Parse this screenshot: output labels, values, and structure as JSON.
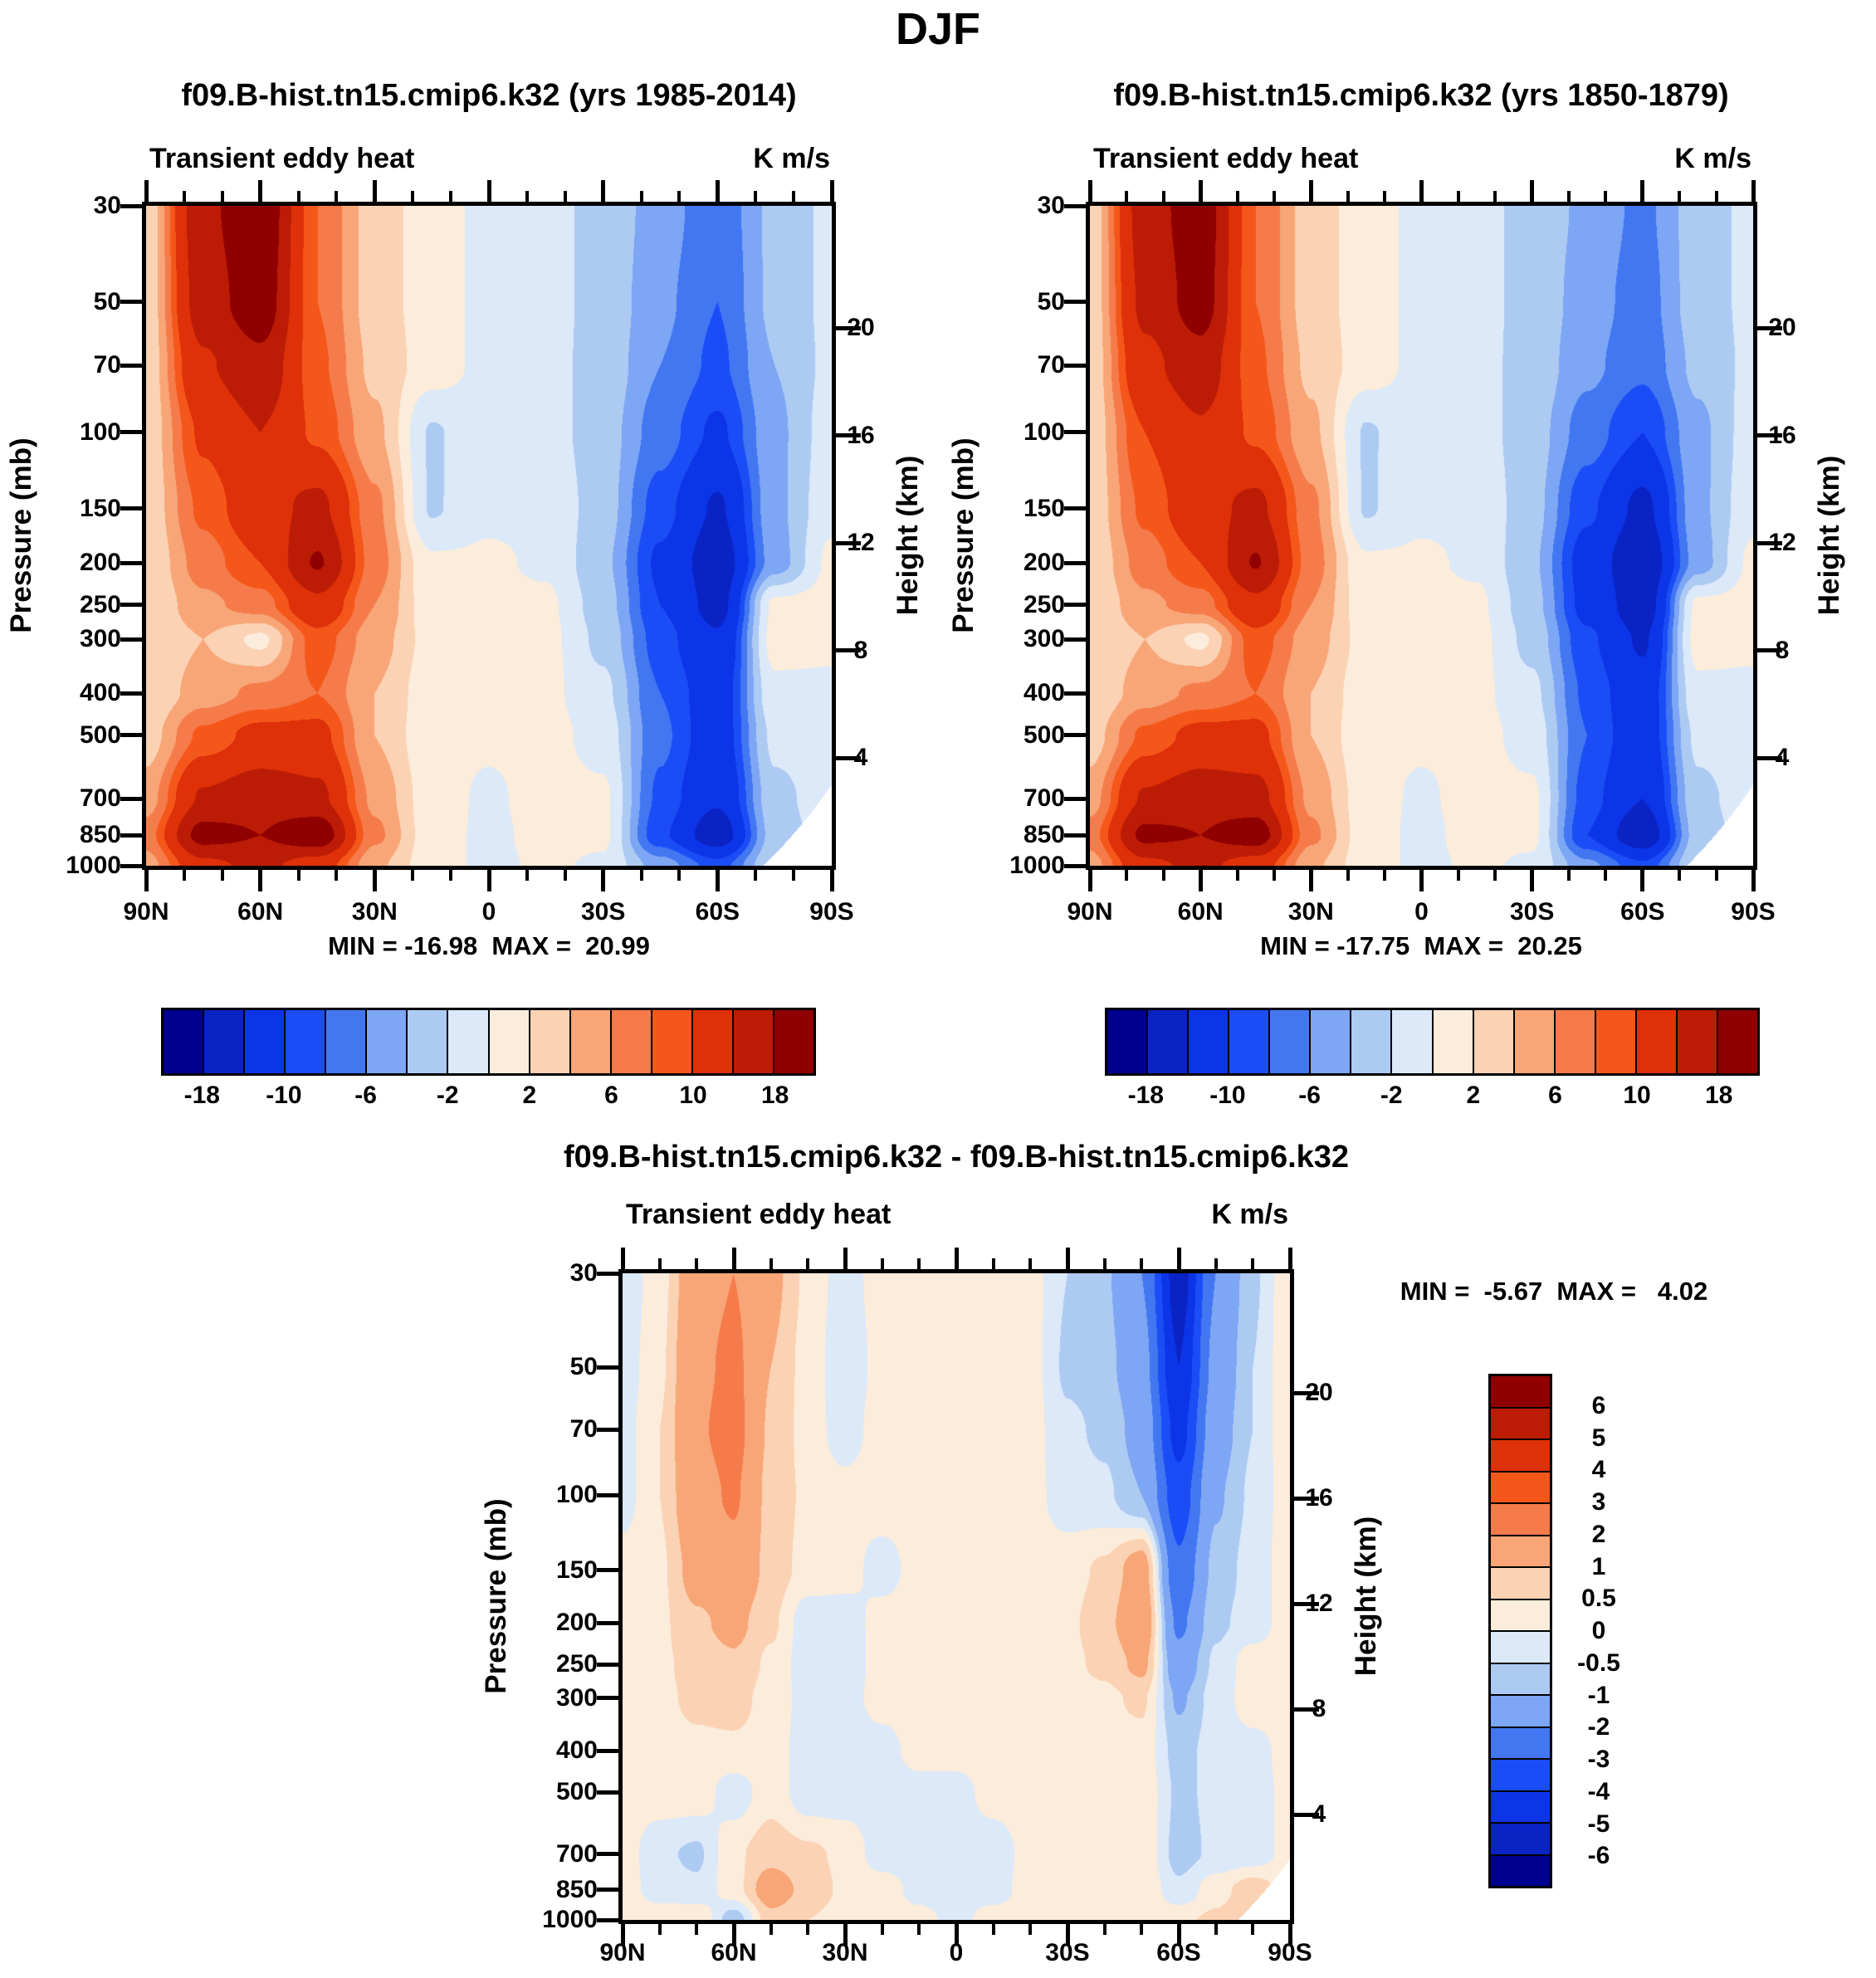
{
  "page": {
    "title": "DJF"
  },
  "palette_blue_to_red": [
    "#00008F",
    "#0A23C4",
    "#0D35E8",
    "#1B4DF7",
    "#4377F2",
    "#7DA6F5",
    "#ADCAF3",
    "#DBE9F9",
    "#FCECDB",
    "#FBD2B4",
    "#F8A677",
    "#F67B4B",
    "#F5571B",
    "#DE3009",
    "#BC1C05",
    "#900000"
  ],
  "chart_data": [
    {
      "id": "climo-1985-2014",
      "type": "heatmap",
      "title": "f09.B-hist.tn15.cmip6.k32 (yrs 1985-2014)",
      "field_label": "Transient eddy heat",
      "units": "K m/s",
      "stats_text": "MIN = -16.98  MAX =  20.99",
      "min": -16.98,
      "max": 20.99,
      "ylabel_left": "Pressure (mb)",
      "ylabel_right": "Height (km)",
      "lat_tick_labels": [
        "90N",
        "60N",
        "30N",
        "0",
        "30S",
        "60S",
        "90S"
      ],
      "pressure_ticks": [
        30,
        50,
        70,
        100,
        150,
        200,
        250,
        300,
        400,
        500,
        700,
        850,
        1000
      ],
      "height_ticks_km": [
        20,
        16,
        12,
        8,
        4
      ],
      "levels": [
        -18,
        -14,
        -10,
        -8,
        -6,
        -4,
        -2,
        0,
        2,
        4,
        6,
        8,
        10,
        14,
        18
      ],
      "colorbar": {
        "orientation": "horizontal",
        "labels": [
          "-18",
          "-10",
          "-6",
          "-2",
          "2",
          "6",
          "10",
          "18"
        ]
      },
      "grid_lats": [
        90,
        75,
        60,
        45,
        30,
        15,
        0,
        -15,
        -30,
        -45,
        -60,
        -75,
        -90
      ],
      "grid_pressures": [
        30,
        50,
        70,
        100,
        150,
        200,
        250,
        300,
        400,
        500,
        700,
        850,
        1000
      ],
      "values": [
        [
          2.5,
          17.0,
          21.5,
          8.0,
          3.0,
          1.0,
          -0.6,
          -1.5,
          -2.5,
          -5.0,
          -7.5,
          -3.5,
          -1.5
        ],
        [
          2.5,
          16.0,
          20.5,
          8.0,
          3.0,
          1.0,
          -0.6,
          -1.5,
          -2.5,
          -5.5,
          -8.0,
          -3.5,
          -1.5
        ],
        [
          2.5,
          13.5,
          17.0,
          8.5,
          3.5,
          1.0,
          -0.6,
          -1.5,
          -2.6,
          -6.0,
          -8.5,
          -4.0,
          -1.5
        ],
        [
          2.5,
          10.5,
          14.0,
          9.5,
          4.5,
          -2.2,
          -0.6,
          -1.2,
          -3.0,
          -7.0,
          -10.5,
          -4.5,
          -1.0
        ],
        [
          2.5,
          8.5,
          12.5,
          15.0,
          6.5,
          -2.2,
          -0.4,
          -0.5,
          -3.0,
          -9.0,
          -14.5,
          -4.5,
          -0.6
        ],
        [
          2.2,
          7.0,
          10.0,
          18.4,
          7.0,
          0.3,
          0.3,
          -0.3,
          -3.5,
          -10.5,
          -16.5,
          -5.0,
          0.5
        ],
        [
          2.0,
          5.5,
          7.0,
          13.0,
          6.0,
          0.8,
          0.5,
          0.4,
          -3.0,
          -10.0,
          -15.5,
          0.5,
          0.8
        ],
        [
          2.0,
          4.0,
          1.5,
          9.0,
          5.0,
          1.2,
          0.4,
          0.6,
          -2.5,
          -9.0,
          -13.5,
          0.8,
          0.4
        ],
        [
          2.2,
          5.0,
          6.5,
          8.0,
          4.0,
          0.8,
          0.3,
          0.5,
          -1.5,
          -8.0,
          -12.0,
          -0.5,
          -0.4
        ],
        [
          3.0,
          8.5,
          11.0,
          11.0,
          4.0,
          0.5,
          0.3,
          0.7,
          -0.8,
          -7.5,
          -12.0,
          -1.5,
          -0.8
        ],
        [
          5.0,
          14.5,
          16.5,
          15.0,
          5.5,
          0.8,
          -0.3,
          0.8,
          0.4,
          -8.5,
          -13.5,
          -2.5,
          -1.0
        ],
        [
          7.0,
          19.5,
          18.0,
          21.0,
          6.5,
          0.8,
          -0.4,
          0.6,
          0.4,
          -9.5,
          -16.5,
          -3.0,
          -1.0
        ],
        [
          5.0,
          13.0,
          15.0,
          12.0,
          4.5,
          0.8,
          -0.4,
          0.3,
          -0.3,
          -5.0,
          -9.0,
          -2.0,
          -1.0
        ]
      ]
    },
    {
      "id": "climo-1850-1879",
      "type": "heatmap",
      "title": "f09.B-hist.tn15.cmip6.k32 (yrs 1850-1879)",
      "field_label": "Transient eddy heat",
      "units": "K m/s",
      "stats_text": "MIN = -17.75  MAX =  20.25",
      "min": -17.75,
      "max": 20.25,
      "ylabel_left": "Pressure (mb)",
      "ylabel_right": "Height (km)",
      "lat_tick_labels": [
        "90N",
        "60N",
        "30N",
        "0",
        "30S",
        "60S",
        "90S"
      ],
      "pressure_ticks": [
        30,
        50,
        70,
        100,
        150,
        200,
        250,
        300,
        400,
        500,
        700,
        850,
        1000
      ],
      "height_ticks_km": [
        20,
        16,
        12,
        8,
        4
      ],
      "levels": [
        -18,
        -14,
        -10,
        -8,
        -6,
        -4,
        -2,
        0,
        2,
        4,
        6,
        8,
        10,
        14,
        18
      ],
      "colorbar": {
        "orientation": "horizontal",
        "labels": [
          "-18",
          "-10",
          "-6",
          "-2",
          "2",
          "6",
          "10",
          "18"
        ]
      },
      "grid_lats": [
        90,
        75,
        60,
        45,
        30,
        15,
        0,
        -15,
        -30,
        -45,
        -60,
        -75,
        -90
      ],
      "grid_pressures": [
        30,
        50,
        70,
        100,
        150,
        200,
        250,
        300,
        400,
        500,
        700,
        850,
        1000
      ],
      "values": [
        [
          2.5,
          16.0,
          20.5,
          8.0,
          3.0,
          1.0,
          -0.6,
          -1.5,
          -2.5,
          -4.5,
          -6.5,
          -3.0,
          -1.5
        ],
        [
          2.5,
          15.0,
          19.8,
          8.0,
          3.0,
          1.0,
          -0.6,
          -1.5,
          -2.5,
          -5.0,
          -7.0,
          -3.0,
          -1.5
        ],
        [
          2.5,
          13.0,
          16.5,
          8.5,
          3.5,
          1.0,
          -0.6,
          -1.5,
          -2.6,
          -5.5,
          -7.5,
          -3.5,
          -1.5
        ],
        [
          2.5,
          10.0,
          13.5,
          9.5,
          4.5,
          -2.2,
          -0.6,
          -1.2,
          -3.0,
          -7.0,
          -10.0,
          -4.5,
          -1.0
        ],
        [
          2.5,
          8.5,
          12.5,
          15.0,
          6.5,
          -2.2,
          -0.4,
          -0.5,
          -3.2,
          -9.5,
          -15.0,
          -4.5,
          -0.6
        ],
        [
          2.2,
          7.0,
          10.0,
          18.3,
          7.0,
          0.3,
          0.3,
          -0.3,
          -3.6,
          -11.5,
          -17.6,
          -5.0,
          0.5
        ],
        [
          2.0,
          5.5,
          7.0,
          13.0,
          6.0,
          0.8,
          0.5,
          0.4,
          -3.2,
          -11.0,
          -16.5,
          0.5,
          0.8
        ],
        [
          2.0,
          4.0,
          1.5,
          9.0,
          5.0,
          1.2,
          0.4,
          0.6,
          -2.6,
          -9.5,
          -14.5,
          0.8,
          0.4
        ],
        [
          2.2,
          5.0,
          6.5,
          8.0,
          4.0,
          0.8,
          0.3,
          0.5,
          -1.5,
          -8.5,
          -12.5,
          -0.5,
          -0.4
        ],
        [
          3.0,
          8.5,
          11.0,
          11.0,
          4.0,
          0.5,
          0.3,
          0.7,
          -0.8,
          -8.0,
          -12.5,
          -1.5,
          -0.8
        ],
        [
          5.0,
          14.5,
          16.5,
          15.5,
          5.5,
          0.8,
          -0.3,
          0.8,
          0.4,
          -9.0,
          -14.0,
          -2.5,
          -1.0
        ],
        [
          7.0,
          19.0,
          18.0,
          20.3,
          6.5,
          0.8,
          -0.4,
          0.6,
          0.4,
          -10.0,
          -17.2,
          -3.0,
          -1.0
        ],
        [
          5.0,
          13.0,
          15.0,
          12.0,
          4.5,
          0.8,
          -0.4,
          0.3,
          -0.3,
          -5.5,
          -9.5,
          -2.0,
          -1.0
        ]
      ]
    },
    {
      "id": "difference",
      "type": "heatmap",
      "title": "f09.B-hist.tn15.cmip6.k32 - f09.B-hist.tn15.cmip6.k32",
      "field_label": "Transient eddy heat",
      "units": "K m/s",
      "stats_text": "MIN =  -5.67  MAX =   4.02",
      "min": -5.67,
      "max": 4.02,
      "ylabel_left": "Pressure (mb)",
      "ylabel_right": "Height (km)",
      "lat_tick_labels": [
        "90N",
        "60N",
        "30N",
        "0",
        "30S",
        "60S",
        "90S"
      ],
      "pressure_ticks": [
        30,
        50,
        70,
        100,
        150,
        200,
        250,
        300,
        400,
        500,
        700,
        850,
        1000
      ],
      "height_ticks_km": [
        20,
        16,
        12,
        8,
        4
      ],
      "levels": [
        -6,
        -5,
        -4,
        -3,
        -2,
        -1,
        -0.5,
        0,
        0.5,
        1,
        2,
        3,
        4,
        5,
        6
      ],
      "colorbar": {
        "orientation": "vertical",
        "labels": [
          "6",
          "5",
          "4",
          "3",
          "2",
          "1",
          "0.5",
          "0",
          "-0.5",
          "-1",
          "-2",
          "-3",
          "-4",
          "-5",
          "-6"
        ]
      },
      "grid_lats": [
        90,
        80,
        70,
        60,
        50,
        40,
        30,
        20,
        10,
        0,
        -10,
        -20,
        -30,
        -40,
        -50,
        -60,
        -70,
        -80,
        -90
      ],
      "grid_pressures": [
        30,
        50,
        70,
        100,
        150,
        200,
        250,
        300,
        400,
        500,
        700,
        850,
        1000
      ],
      "values": [
        [
          -0.4,
          0.3,
          1.6,
          2.0,
          1.2,
          0.4,
          -0.3,
          0.3,
          0.3,
          0.3,
          0.3,
          0.2,
          -0.5,
          -0.9,
          -2.0,
          -5.6,
          -2.0,
          -0.6,
          0.4
        ],
        [
          -0.3,
          0.4,
          1.8,
          2.2,
          1.0,
          0.3,
          -0.4,
          0.2,
          0.3,
          0.3,
          0.3,
          0.2,
          -0.6,
          -0.8,
          -1.6,
          -5.0,
          -1.7,
          -0.5,
          0.4
        ],
        [
          -0.2,
          0.5,
          1.9,
          2.3,
          0.9,
          0.3,
          -0.3,
          0.3,
          0.4,
          0.4,
          0.3,
          0.2,
          -0.4,
          -0.6,
          -1.3,
          -4.4,
          -1.4,
          -0.5,
          0.4
        ],
        [
          -0.2,
          0.5,
          1.7,
          2.1,
          0.8,
          0.4,
          0.2,
          0.4,
          0.3,
          0.3,
          0.2,
          0.2,
          -0.3,
          -0.4,
          -1.0,
          -3.6,
          -1.1,
          -0.4,
          0.3
        ],
        [
          0.2,
          0.4,
          1.3,
          1.7,
          0.8,
          0.3,
          0.3,
          -0.3,
          0.3,
          0.4,
          0.4,
          0.3,
          0.3,
          0.6,
          1.4,
          -2.8,
          -0.8,
          -0.3,
          0.3
        ],
        [
          0.3,
          0.4,
          0.9,
          1.2,
          0.6,
          -0.3,
          -0.4,
          0.3,
          0.4,
          0.4,
          0.4,
          0.3,
          0.4,
          0.8,
          1.7,
          -2.2,
          -0.6,
          -0.3,
          0.3
        ],
        [
          0.3,
          0.4,
          0.7,
          0.9,
          0.4,
          -0.3,
          -0.3,
          0.2,
          0.3,
          0.3,
          0.3,
          0.3,
          0.4,
          0.6,
          1.2,
          -1.6,
          -0.4,
          0.3,
          0.3
        ],
        [
          0.3,
          0.4,
          0.6,
          0.7,
          0.3,
          -0.2,
          -0.2,
          0.2,
          0.3,
          0.3,
          0.3,
          0.3,
          0.3,
          0.4,
          0.6,
          -1.1,
          -0.3,
          0.3,
          0.3
        ],
        [
          0.3,
          0.3,
          0.4,
          0.4,
          0.3,
          -0.3,
          -0.3,
          -0.2,
          0.2,
          0.2,
          0.3,
          0.3,
          0.3,
          0.3,
          0.3,
          -0.7,
          -0.3,
          -0.2,
          0.2
        ],
        [
          0.3,
          0.3,
          0.3,
          -0.3,
          0.3,
          -0.3,
          -0.3,
          -0.3,
          -0.2,
          -0.2,
          0.2,
          0.3,
          0.3,
          0.3,
          0.4,
          -0.6,
          -0.4,
          -0.3,
          0.2
        ],
        [
          0.3,
          -0.4,
          -0.6,
          0.4,
          0.8,
          0.6,
          0.4,
          -0.3,
          -0.3,
          -0.3,
          -0.3,
          0.2,
          0.2,
          0.3,
          0.4,
          -0.7,
          -0.4,
          -0.3,
          0.2
        ],
        [
          0.3,
          -0.3,
          -0.4,
          0.3,
          1.4,
          0.8,
          0.4,
          0.3,
          -0.2,
          -0.3,
          -0.3,
          0.3,
          0.3,
          0.3,
          0.5,
          -0.4,
          0.3,
          0.8,
          0.3
        ],
        [
          0.4,
          0.4,
          0.5,
          -0.8,
          0.8,
          0.5,
          0.3,
          0.3,
          0.2,
          -0.2,
          0.3,
          0.3,
          0.3,
          0.3,
          0.4,
          0.4,
          0.6,
          1.0,
          0.4
        ]
      ]
    }
  ]
}
